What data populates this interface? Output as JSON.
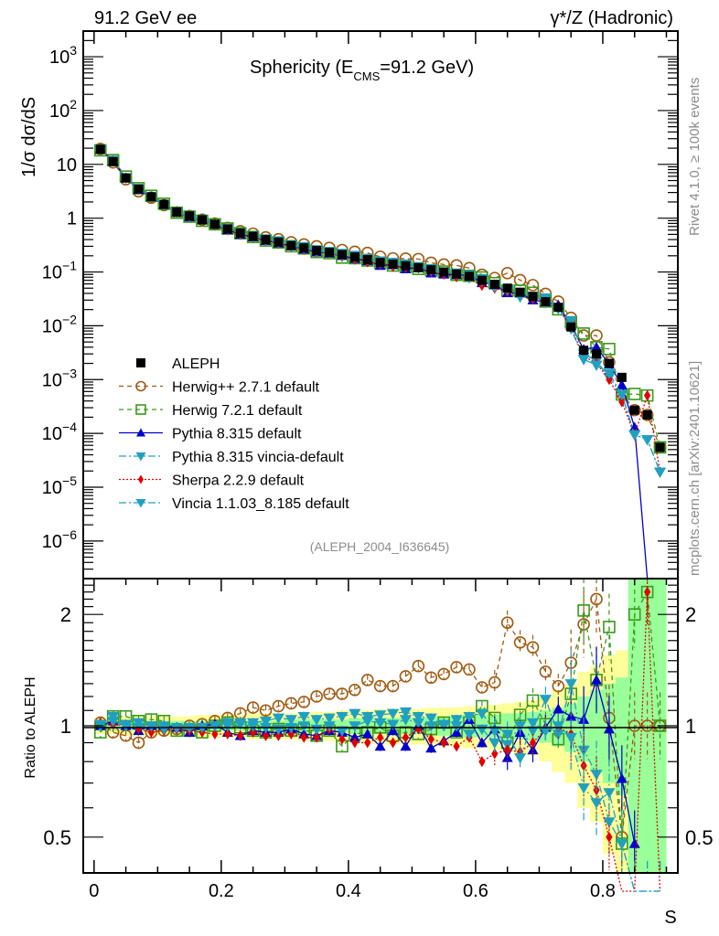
{
  "chart_data": {
    "type": "scatter",
    "header_left": "91.2 GeV ee",
    "header_right": "γ*/Z (Hadronic)",
    "title_main": "Sphericity (E",
    "title_sub": "CMS",
    "title_rest": "=91.2 GeV)",
    "analysis_id": "(ALEPH_2004_I636645)",
    "side_label_top": "Rivet 4.1.0, ≥ 100k events",
    "side_label_bottom": "mcplots.cern.ch [arXiv:2401.10621]",
    "xlabel": "S",
    "ylabel_top": "1/σ  dσ/dS",
    "ylabel_ratio": "Ratio to ALEPH",
    "xlim": [
      -0.017,
      0.918
    ],
    "ylim_top": [
      2e-07,
      3000
    ],
    "ylim_ratio": [
      0.4,
      2.5
    ],
    "yscale_top": "log",
    "yscale_ratio": "log",
    "grid": false,
    "legend_position": "lower-left",
    "x_ticks": [
      0,
      0.2,
      0.4,
      0.6,
      0.8
    ],
    "x_tick_labels": [
      "0",
      "0.2",
      "0.4",
      "0.6",
      "0.8"
    ],
    "y_ticks_top": [
      {
        "v": 1000,
        "base": "10",
        "exp": "3"
      },
      {
        "v": 100,
        "base": "10",
        "exp": "2"
      },
      {
        "v": 10,
        "base": "10",
        "exp": ""
      },
      {
        "v": 1,
        "base": "1",
        "exp": ""
      },
      {
        "v": 0.1,
        "base": "10",
        "exp": "−1"
      },
      {
        "v": 0.01,
        "base": "10",
        "exp": "−2"
      },
      {
        "v": 0.001,
        "base": "10",
        "exp": "−3"
      },
      {
        "v": 0.0001,
        "base": "10",
        "exp": "−4"
      },
      {
        "v": 1e-05,
        "base": "10",
        "exp": "−5"
      },
      {
        "v": 1e-06,
        "base": "10",
        "exp": "−6"
      }
    ],
    "y_ticks_ratio": [
      {
        "v": 2,
        "label": "2"
      },
      {
        "v": 1,
        "label": "1"
      },
      {
        "v": 0.5,
        "label": "0.5"
      }
    ],
    "x": [
      0.01,
      0.03,
      0.05,
      0.07,
      0.09,
      0.11,
      0.13,
      0.15,
      0.17,
      0.19,
      0.21,
      0.23,
      0.25,
      0.27,
      0.29,
      0.31,
      0.33,
      0.35,
      0.37,
      0.39,
      0.41,
      0.43,
      0.45,
      0.47,
      0.49,
      0.51,
      0.53,
      0.55,
      0.57,
      0.59,
      0.61,
      0.63,
      0.65,
      0.67,
      0.69,
      0.71,
      0.73,
      0.75,
      0.77,
      0.79,
      0.81,
      0.83,
      0.85,
      0.87,
      0.89
    ],
    "bin_width": 0.02,
    "data": {
      "name": "ALEPH",
      "color": "#000000",
      "values": [
        19,
        11.3,
        5.6,
        3.5,
        2.5,
        1.8,
        1.3,
        1.1,
        0.93,
        0.77,
        0.63,
        0.53,
        0.46,
        0.4,
        0.36,
        0.31,
        0.28,
        0.25,
        0.23,
        0.21,
        0.19,
        0.17,
        0.15,
        0.14,
        0.13,
        0.12,
        0.11,
        0.1,
        0.092,
        0.083,
        0.07,
        0.059,
        0.05,
        0.042,
        0.035,
        0.028,
        0.022,
        0.0095,
        0.0035,
        0.003,
        0.002,
        0.0011,
        0.00027,
        0.00022,
        5.5e-05
      ],
      "band_inner": [
        0.03,
        0.03,
        0.03,
        0.03,
        0.03,
        0.03,
        0.03,
        0.03,
        0.03,
        0.03,
        0.03,
        0.03,
        0.03,
        0.03,
        0.03,
        0.04,
        0.04,
        0.04,
        0.04,
        0.04,
        0.05,
        0.05,
        0.05,
        0.05,
        0.05,
        0.05,
        0.06,
        0.06,
        0.06,
        0.07,
        0.07,
        0.07,
        0.08,
        0.08,
        0.09,
        0.1,
        0.12,
        0.15,
        0.2,
        0.25,
        0.3,
        0.35,
        0.6,
        0.6,
        0.6
      ],
      "band_outer": [
        0.05,
        0.05,
        0.06,
        0.06,
        0.06,
        0.06,
        0.06,
        0.06,
        0.07,
        0.07,
        0.07,
        0.07,
        0.08,
        0.08,
        0.08,
        0.08,
        0.09,
        0.09,
        0.09,
        0.1,
        0.1,
        0.1,
        0.11,
        0.11,
        0.11,
        0.11,
        0.12,
        0.12,
        0.12,
        0.13,
        0.13,
        0.14,
        0.15,
        0.16,
        0.17,
        0.2,
        0.25,
        0.3,
        0.4,
        0.45,
        0.55,
        0.6,
        0.6,
        0.6,
        0.6
      ]
    },
    "series": [
      {
        "name": "Herwig++ 2.7.1 default",
        "color": "#a05a10",
        "marker": "open-circle",
        "line": "dashed",
        "ratio": [
          1.02,
          0.96,
          0.94,
          0.9,
          0.96,
          0.97,
          0.98,
          1.0,
          1.01,
          1.03,
          1.05,
          1.08,
          1.12,
          1.1,
          1.13,
          1.15,
          1.16,
          1.2,
          1.22,
          1.22,
          1.25,
          1.33,
          1.28,
          1.28,
          1.36,
          1.45,
          1.35,
          1.38,
          1.44,
          1.42,
          1.27,
          1.31,
          1.9,
          1.68,
          1.63,
          1.4,
          1.28,
          1.48,
          1.88,
          2.2,
          1.05,
          0.5,
          1.0,
          1.0,
          1.0
        ]
      },
      {
        "name": "Herwig 7.2.1 default",
        "color": "#3a9a1a",
        "marker": "open-square",
        "line": "dashed",
        "ratio": [
          0.96,
          1.06,
          1.06,
          1.03,
          1.04,
          1.03,
          0.97,
          0.97,
          0.96,
          1.0,
          1.02,
          0.99,
          0.97,
          0.96,
          0.98,
          0.97,
          0.98,
          0.94,
          0.97,
          0.88,
          0.95,
          0.96,
          0.99,
          0.94,
          0.96,
          0.95,
          0.98,
          1.02,
          0.96,
          1.02,
          1.13,
          1.05,
          0.9,
          1.07,
          1.17,
          1.01,
          0.92,
          1.22,
          2.05,
          1.33,
          1.85,
          0.48,
          2.0,
          2.3,
          1.0
        ]
      },
      {
        "name": "Pythia 8.315 default",
        "color": "#0000cc",
        "marker": "filled-triangle-up",
        "line": "solid",
        "ratio": [
          1.0,
          1.03,
          1.0,
          0.97,
          1.0,
          1.0,
          0.99,
          0.96,
          1.0,
          1.01,
          0.96,
          0.94,
          0.97,
          0.96,
          0.96,
          0.98,
          0.95,
          0.94,
          0.97,
          0.96,
          0.93,
          0.95,
          0.88,
          0.97,
          0.88,
          1.0,
          0.87,
          0.91,
          0.96,
          1.04,
          0.9,
          0.98,
          0.82,
          0.96,
          0.86,
          0.99,
          1.11,
          1.06,
          1.04,
          1.33,
          0.98,
          0.72,
          0.48,
          0.0,
          0.0
        ]
      },
      {
        "name": "Pythia 8.315 vincia-default",
        "color": "#20a0c0",
        "marker": "filled-triangle-down",
        "line": "dash-dot",
        "ratio": [
          1.0,
          1.06,
          1.01,
          0.99,
          1.0,
          1.0,
          0.98,
          0.98,
          0.99,
          1.0,
          1.02,
          1.02,
          1.02,
          1.03,
          1.05,
          1.04,
          1.06,
          1.04,
          1.05,
          1.06,
          1.08,
          1.06,
          1.07,
          1.08,
          1.09,
          1.06,
          1.05,
          1.0,
          1.04,
          1.06,
          1.08,
          0.97,
          0.89,
          1.0,
          0.97,
          1.18,
          0.95,
          1.3,
          0.86,
          0.74,
          0.55,
          0.48,
          0.35,
          0.35,
          0.35
        ]
      },
      {
        "name": "Sherpa 2.2.9 default",
        "color": "#e00000",
        "marker": "filled-diamond",
        "line": "dotted",
        "ratio": [
          1.02,
          1.01,
          1.0,
          0.98,
          0.96,
          0.97,
          0.98,
          0.97,
          0.96,
          0.95,
          0.95,
          0.94,
          0.96,
          0.94,
          0.94,
          0.95,
          0.93,
          0.93,
          0.98,
          0.92,
          0.9,
          0.9,
          0.93,
          0.9,
          0.93,
          0.98,
          0.92,
          0.9,
          0.88,
          0.93,
          0.8,
          0.84,
          0.86,
          0.85,
          0.9,
          0.98,
          0.99,
          0.95,
          0.78,
          0.67,
          0.5,
          0.35,
          0.35,
          2.3,
          0.35
        ]
      },
      {
        "name": "Vincia 1.1.03_8.185 default",
        "color": "#20a0c0",
        "marker": "filled-triangle-down",
        "line": "dash-dot",
        "ratio": [
          1.01,
          1.03,
          1.0,
          1.02,
          1.0,
          0.98,
          0.99,
          0.99,
          0.99,
          1.0,
          1.0,
          1.01,
          1.0,
          0.99,
          0.98,
          0.99,
          1.0,
          0.98,
          1.0,
          0.97,
          1.0,
          1.03,
          1.02,
          1.01,
          1.04,
          1.02,
          1.0,
          1.01,
          1.0,
          0.95,
          0.98,
          0.9,
          0.95,
          0.82,
          1.02,
          0.97,
          1.0,
          0.93,
          0.68,
          0.62,
          0.66,
          0.48,
          0.35,
          0.35,
          0.35
        ]
      }
    ]
  }
}
